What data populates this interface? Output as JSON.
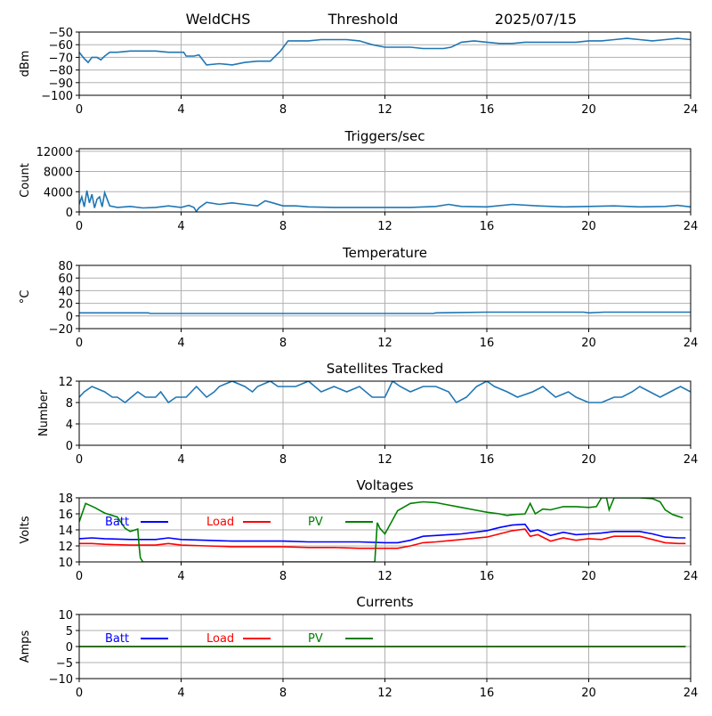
{
  "header": {
    "site": "WeldCHS",
    "mode": "Threshold",
    "date": "2025/07/15"
  },
  "colors": {
    "series": "#1f77b4",
    "batt": "#0000ff",
    "load": "#ff0000",
    "pv": "#008000",
    "grid": "#b0b0b0"
  },
  "chart_data": [
    {
      "type": "line",
      "title": "",
      "ylabel": "dBm",
      "xlim": [
        0,
        24
      ],
      "xticks": [
        0,
        4,
        8,
        12,
        16,
        20,
        24
      ],
      "ylim": [
        -100,
        -50
      ],
      "yticks": [
        -100,
        -90,
        -80,
        -70,
        -60,
        -50
      ],
      "grid": true,
      "series": [
        {
          "color": "#1f77b4",
          "x": [
            0,
            0.2,
            0.35,
            0.5,
            0.7,
            0.85,
            1.0,
            1.2,
            1.5,
            2.0,
            2.5,
            2.8,
            3.0,
            3.5,
            3.9,
            4.1,
            4.2,
            4.5,
            4.7,
            5.0,
            5.5,
            6.0,
            6.5,
            7.0,
            7.5,
            7.9,
            8.2,
            8.5,
            9.0,
            9.5,
            10.0,
            10.5,
            11.0,
            11.5,
            12.0,
            12.5,
            13.0,
            13.5,
            14.0,
            14.3,
            14.6,
            15.0,
            15.5,
            16.0,
            16.5,
            17.0,
            17.5,
            18.0,
            18.5,
            19.0,
            19.5,
            20.0,
            20.5,
            21.0,
            21.5,
            22.0,
            22.5,
            23.0,
            23.5,
            24.0
          ],
          "values": [
            -66,
            -71,
            -74,
            -70,
            -70,
            -72,
            -69,
            -66,
            -66,
            -65,
            -65,
            -65,
            -65,
            -66,
            -66,
            -66,
            -69,
            -69,
            -68,
            -76,
            -75,
            -76,
            -74,
            -73,
            -73,
            -65,
            -57,
            -57,
            -57,
            -56,
            -56,
            -56,
            -57,
            -60,
            -62,
            -62,
            -62,
            -63,
            -63,
            -63,
            -62,
            -58,
            -57,
            -58,
            -59,
            -59,
            -58,
            -58,
            -58,
            -58,
            -58,
            -57,
            -57,
            -56,
            -55,
            -56,
            -57,
            -56,
            -55,
            -56
          ]
        }
      ]
    },
    {
      "type": "line",
      "title": "Triggers/sec",
      "ylabel": "Count",
      "xlim": [
        0,
        24
      ],
      "xticks": [
        0,
        4,
        8,
        12,
        16,
        20,
        24
      ],
      "ylim": [
        0,
        12500
      ],
      "yticks": [
        0,
        4000,
        8000,
        12000
      ],
      "grid": true,
      "series": [
        {
          "color": "#1f77b4",
          "x": [
            0,
            0.1,
            0.2,
            0.3,
            0.4,
            0.5,
            0.6,
            0.7,
            0.8,
            0.9,
            1.0,
            1.2,
            1.5,
            2.0,
            2.5,
            3.0,
            3.5,
            4.0,
            4.3,
            4.5,
            4.6,
            4.7,
            5.0,
            5.5,
            6.0,
            6.5,
            7.0,
            7.3,
            7.6,
            8.0,
            8.5,
            9.0,
            10.0,
            11.0,
            12.0,
            13.0,
            14.0,
            14.5,
            15.0,
            16.0,
            17.0,
            18.0,
            19.0,
            20.0,
            21.0,
            22.0,
            23.0,
            23.5,
            24.0
          ],
          "values": [
            1500,
            3000,
            1000,
            4200,
            1800,
            3500,
            800,
            2500,
            3000,
            1000,
            3800,
            1200,
            900,
            1100,
            800,
            900,
            1200,
            900,
            1300,
            900,
            100,
            800,
            1900,
            1500,
            1800,
            1500,
            1200,
            2200,
            1800,
            1200,
            1200,
            1000,
            900,
            900,
            900,
            900,
            1100,
            1500,
            1100,
            1000,
            1500,
            1200,
            1000,
            1100,
            1200,
            1000,
            1100,
            1300,
            1000
          ]
        }
      ]
    },
    {
      "type": "line",
      "title": "Temperature",
      "ylabel": "°C",
      "xlim": [
        0,
        24
      ],
      "xticks": [
        0,
        4,
        8,
        12,
        16,
        20,
        24
      ],
      "ylim": [
        -20,
        80
      ],
      "yticks": [
        -20,
        0,
        20,
        40,
        60,
        80
      ],
      "grid": true,
      "series": [
        {
          "color": "#1f77b4",
          "x": [
            0,
            2.7,
            2.8,
            13.9,
            14.0,
            16.0,
            19.8,
            20.0,
            20.6,
            24.0
          ],
          "values": [
            5,
            5,
            4,
            4,
            5,
            6,
            6,
            5,
            6,
            6
          ]
        }
      ]
    },
    {
      "type": "line",
      "title": "Satellites Tracked",
      "ylabel": "Number",
      "xlim": [
        0,
        24
      ],
      "xticks": [
        0,
        4,
        8,
        12,
        16,
        20,
        24
      ],
      "ylim": [
        0,
        12
      ],
      "yticks": [
        0,
        4,
        8,
        12
      ],
      "grid": true,
      "series": [
        {
          "color": "#1f77b4",
          "x": [
            0,
            0.2,
            0.5,
            1.0,
            1.3,
            1.5,
            1.8,
            2.3,
            2.6,
            3.0,
            3.2,
            3.5,
            3.8,
            4.2,
            4.4,
            4.6,
            5.0,
            5.3,
            5.5,
            6.0,
            6.5,
            6.8,
            7.0,
            7.5,
            7.8,
            8.0,
            8.5,
            9.0,
            9.5,
            10.0,
            10.5,
            11.0,
            11.5,
            12.0,
            12.3,
            12.6,
            13.0,
            13.5,
            14.0,
            14.5,
            14.8,
            15.2,
            15.6,
            16.0,
            16.3,
            16.8,
            17.2,
            17.8,
            18.2,
            18.7,
            19.2,
            19.5,
            20.0,
            20.5,
            21.0,
            21.3,
            21.7,
            22.0,
            22.4,
            22.8,
            23.2,
            23.6,
            24.0
          ],
          "values": [
            9,
            10,
            11,
            10,
            9,
            9,
            8,
            10,
            9,
            9,
            10,
            8,
            9,
            9,
            10,
            11,
            9,
            10,
            11,
            12,
            11,
            10,
            11,
            12,
            11,
            11,
            11,
            12,
            10,
            11,
            10,
            11,
            9,
            9,
            12,
            11,
            10,
            11,
            11,
            10,
            8,
            9,
            11,
            12,
            11,
            10,
            9,
            10,
            11,
            9,
            10,
            9,
            8,
            8,
            9,
            9,
            10,
            11,
            10,
            9,
            10,
            11,
            10
          ]
        }
      ]
    },
    {
      "type": "line",
      "title": "Voltages",
      "ylabel": "Volts",
      "xlim": [
        0,
        24
      ],
      "xticks": [
        0,
        4,
        8,
        12,
        16,
        20,
        24
      ],
      "ylim": [
        10,
        18
      ],
      "yticks": [
        10,
        12,
        14,
        16,
        18
      ],
      "grid": true,
      "legend": [
        "Batt",
        "Load",
        "PV"
      ],
      "series": [
        {
          "name": "Batt",
          "color": "#0000ff",
          "x": [
            0,
            0.5,
            1.0,
            2.0,
            3.0,
            3.5,
            4.0,
            5.0,
            6.0,
            7.0,
            8.0,
            9.0,
            10.0,
            11.0,
            12.0,
            12.5,
            13.0,
            13.5,
            14.0,
            15.0,
            16.0,
            16.5,
            17.0,
            17.5,
            17.7,
            18.0,
            18.5,
            19.0,
            19.5,
            20.0,
            20.5,
            21.0,
            22.0,
            22.5,
            23.0,
            23.5,
            23.8
          ],
          "values": [
            12.9,
            13.0,
            12.9,
            12.8,
            12.8,
            13.0,
            12.8,
            12.7,
            12.6,
            12.6,
            12.6,
            12.5,
            12.5,
            12.5,
            12.4,
            12.4,
            12.7,
            13.2,
            13.3,
            13.5,
            13.9,
            14.3,
            14.6,
            14.7,
            13.8,
            14.0,
            13.3,
            13.7,
            13.4,
            13.5,
            13.6,
            13.8,
            13.8,
            13.5,
            13.1,
            13.0,
            13.0
          ]
        },
        {
          "name": "Load",
          "color": "#ff0000",
          "x": [
            0,
            0.5,
            1.0,
            2.0,
            3.0,
            3.5,
            4.0,
            5.0,
            6.0,
            7.0,
            8.0,
            9.0,
            10.0,
            11.0,
            12.0,
            12.5,
            13.0,
            13.5,
            14.0,
            15.0,
            16.0,
            16.5,
            17.0,
            17.5,
            17.7,
            18.0,
            18.5,
            19.0,
            19.5,
            20.0,
            20.5,
            21.0,
            22.0,
            22.5,
            23.0,
            23.5,
            23.8
          ],
          "values": [
            12.3,
            12.3,
            12.2,
            12.1,
            12.1,
            12.3,
            12.1,
            12.0,
            11.9,
            11.9,
            11.9,
            11.8,
            11.8,
            11.7,
            11.7,
            11.7,
            12.0,
            12.4,
            12.5,
            12.8,
            13.1,
            13.5,
            13.9,
            14.1,
            13.2,
            13.4,
            12.6,
            13.0,
            12.7,
            12.9,
            12.8,
            13.2,
            13.2,
            12.8,
            12.4,
            12.3,
            12.3
          ]
        },
        {
          "name": "PV",
          "color": "#008000",
          "x": [
            0,
            0.25,
            0.6,
            1.0,
            1.5,
            1.8,
            2.0,
            2.3,
            2.35,
            2.4,
            2.5,
            11.6,
            11.7,
            11.8,
            12.0,
            12.5,
            13.0,
            13.5,
            14.0,
            14.5,
            15.0,
            15.5,
            16.0,
            16.5,
            16.8,
            17.0,
            17.5,
            17.7,
            17.9,
            18.2,
            18.5,
            19.0,
            19.5,
            20.0,
            20.3,
            20.5,
            20.7,
            20.8,
            21.0,
            22.0,
            22.5,
            22.8,
            23.0,
            23.3,
            23.7
          ],
          "values": [
            15.0,
            17.3,
            16.8,
            16.1,
            15.6,
            14.2,
            13.8,
            14.1,
            12.0,
            10.5,
            10.0,
            10.0,
            14.9,
            14.2,
            13.5,
            16.4,
            17.3,
            17.5,
            17.4,
            17.1,
            16.8,
            16.5,
            16.2,
            16.0,
            15.8,
            15.9,
            16.0,
            17.3,
            16.0,
            16.6,
            16.5,
            16.9,
            16.9,
            16.8,
            16.9,
            18.0,
            18.0,
            16.5,
            18.0,
            18.0,
            17.9,
            17.5,
            16.5,
            15.9,
            15.5
          ]
        }
      ]
    },
    {
      "type": "line",
      "title": "Currents",
      "ylabel": "Amps",
      "xlim": [
        0,
        24
      ],
      "xticks": [
        0,
        4,
        8,
        12,
        16,
        20,
        24
      ],
      "ylim": [
        -10,
        10
      ],
      "yticks": [
        -10,
        -5,
        0,
        5,
        10
      ],
      "grid": true,
      "legend": [
        "Batt",
        "Load",
        "PV"
      ],
      "series": [
        {
          "name": "Batt",
          "color": "#0000ff",
          "x": [
            0,
            23.8
          ],
          "values": [
            0,
            0
          ]
        },
        {
          "name": "Load",
          "color": "#ff0000",
          "x": [
            0,
            23.8
          ],
          "values": [
            0,
            0
          ]
        },
        {
          "name": "PV",
          "color": "#008000",
          "x": [
            0,
            23.8
          ],
          "values": [
            0,
            0
          ]
        }
      ]
    }
  ]
}
